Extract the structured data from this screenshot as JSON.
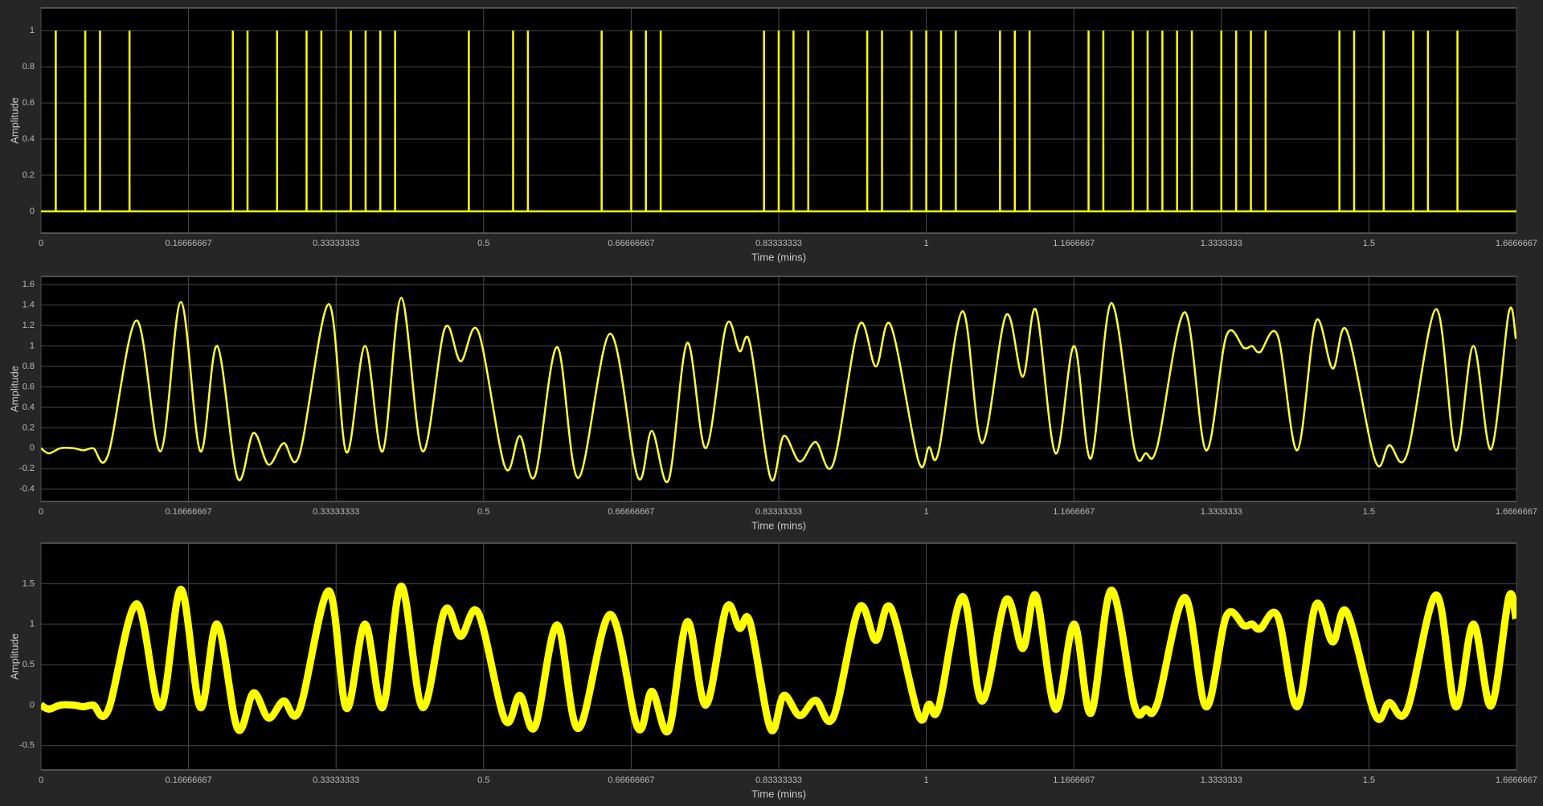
{
  "chart_data": [
    {
      "type": "stem",
      "xlabel": "Time (mins)",
      "ylabel": "Amplitude",
      "color": "#ffff00",
      "grid": true,
      "xlim": [
        0,
        1.6666667
      ],
      "xticks": [
        0,
        0.16666667,
        0.33333333,
        0.5,
        0.66666667,
        0.83333333,
        1,
        1.1666667,
        1.3333333,
        1.5,
        1.6666667
      ],
      "ylim": [
        -0.12,
        1.125
      ],
      "yticks": [
        0,
        0.2,
        0.4,
        0.6,
        0.8,
        1
      ],
      "x": [
        0.0167,
        0.05,
        0.0667,
        0.1,
        0.2167,
        0.2333,
        0.2667,
        0.3,
        0.3167,
        0.35,
        0.3667,
        0.3833,
        0.4,
        0.4833,
        0.5333,
        0.55,
        0.6333,
        0.6667,
        0.6833,
        0.7,
        0.8167,
        0.8333,
        0.85,
        0.8667,
        0.9333,
        0.95,
        0.9833,
        1,
        1.0167,
        1.0333,
        1.0833,
        1.1,
        1.1167,
        1.1833,
        1.2,
        1.2333,
        1.25,
        1.2667,
        1.2833,
        1.3,
        1.3333,
        1.35,
        1.3667,
        1.3833,
        1.4667,
        1.4833,
        1.5167,
        1.55,
        1.5667,
        1.6
      ],
      "values": [
        1,
        1,
        1,
        1,
        1,
        1,
        1,
        1,
        1,
        1,
        1,
        1,
        1,
        1,
        1,
        1,
        1,
        1,
        1,
        1,
        1,
        1,
        1,
        1,
        1,
        1,
        1,
        1,
        1,
        1,
        1,
        1,
        1,
        1,
        1,
        1,
        1,
        1,
        1,
        1,
        1,
        1,
        1,
        1,
        1,
        1,
        1,
        1,
        1,
        1
      ]
    },
    {
      "type": "line",
      "xlabel": "Time (mins)",
      "ylabel": "Amplitude",
      "color": "#ffff33",
      "grid": true,
      "xlim": [
        0,
        1.6666667
      ],
      "xticks": [
        0,
        0.16666667,
        0.33333333,
        0.5,
        0.66666667,
        0.83333333,
        1,
        1.1666667,
        1.3333333,
        1.5,
        1.6666667
      ],
      "ylim": [
        -0.52,
        1.68
      ],
      "yticks": [
        -0.4,
        -0.2,
        0,
        0.2,
        0.4,
        0.6,
        0.8,
        1,
        1.2,
        1.4,
        1.6
      ],
      "x": [
        0,
        0.009,
        0.022,
        0.037,
        0.048,
        0.059,
        0.076,
        0.108,
        0.135,
        0.158,
        0.18,
        0.199,
        0.222,
        0.24,
        0.257,
        0.274,
        0.292,
        0.325,
        0.345,
        0.366,
        0.386,
        0.407,
        0.431,
        0.456,
        0.474,
        0.494,
        0.524,
        0.541,
        0.558,
        0.583,
        0.607,
        0.643,
        0.674,
        0.69,
        0.709,
        0.73,
        0.751,
        0.774,
        0.789,
        0.801,
        0.824,
        0.839,
        0.857,
        0.875,
        0.895,
        0.924,
        0.943,
        0.96,
        0.991,
        1.003,
        1.014,
        1.041,
        1.063,
        1.09,
        1.109,
        1.124,
        1.146,
        1.167,
        1.186,
        1.209,
        1.235,
        1.248,
        1.261,
        1.292,
        1.316,
        1.339,
        1.359,
        1.368,
        1.377,
        1.397,
        1.419,
        1.44,
        1.459,
        1.475,
        1.507,
        1.523,
        1.543,
        1.576,
        1.598,
        1.618,
        1.638,
        1.658,
        1.666
      ],
      "values": [
        0,
        -0.05,
        0,
        0,
        -0.02,
        0,
        -0.06,
        1.25,
        -0.03,
        1.43,
        -0.03,
        1,
        -0.29,
        0.15,
        -0.16,
        0.05,
        -0.06,
        1.41,
        -0.04,
        1,
        -0.03,
        1.47,
        -0.03,
        1.17,
        0.85,
        1.14,
        -0.18,
        0.12,
        -0.27,
        0.99,
        -0.29,
        1.12,
        -0.28,
        0.17,
        -0.31,
        1.03,
        0,
        1.2,
        0.95,
        1.02,
        -0.29,
        0.12,
        -0.13,
        0.06,
        -0.15,
        1.2,
        0.8,
        1.2,
        -0.12,
        0.01,
        -0.03,
        1.34,
        0.05,
        1.3,
        0.7,
        1.35,
        -0.05,
        1,
        -0.1,
        1.42,
        0,
        -0.05,
        0.02,
        1.33,
        -0.02,
        1.1,
        0.98,
        1,
        0.94,
        1.1,
        -0.02,
        1.24,
        0.78,
        1.15,
        -0.12,
        0.03,
        -0.06,
        1.36,
        -0.02,
        1,
        -0.01,
        1.33,
        1.07
      ]
    },
    {
      "type": "line",
      "xlabel": "Time (mins)",
      "ylabel": "Amplitude",
      "color": "#ffff00",
      "grid": true,
      "noisy": true,
      "xlim": [
        0,
        1.6666667
      ],
      "xticks": [
        0,
        0.16666667,
        0.33333333,
        0.5,
        0.66666667,
        0.83333333,
        1,
        1.1666667,
        1.3333333,
        1.5,
        1.6666667
      ],
      "ylim": [
        -0.8,
        2
      ],
      "yticks": [
        -0.5,
        0,
        0.5,
        1,
        1.5
      ],
      "x": [
        0,
        0.009,
        0.022,
        0.037,
        0.048,
        0.059,
        0.076,
        0.108,
        0.135,
        0.158,
        0.18,
        0.199,
        0.222,
        0.24,
        0.257,
        0.274,
        0.292,
        0.325,
        0.345,
        0.366,
        0.386,
        0.407,
        0.431,
        0.456,
        0.474,
        0.494,
        0.524,
        0.541,
        0.558,
        0.583,
        0.607,
        0.643,
        0.674,
        0.69,
        0.709,
        0.73,
        0.751,
        0.774,
        0.789,
        0.801,
        0.824,
        0.839,
        0.857,
        0.875,
        0.895,
        0.924,
        0.943,
        0.96,
        0.991,
        1.003,
        1.014,
        1.041,
        1.063,
        1.09,
        1.109,
        1.124,
        1.146,
        1.167,
        1.186,
        1.209,
        1.235,
        1.248,
        1.261,
        1.292,
        1.316,
        1.339,
        1.359,
        1.368,
        1.377,
        1.397,
        1.419,
        1.44,
        1.459,
        1.475,
        1.507,
        1.523,
        1.543,
        1.576,
        1.598,
        1.618,
        1.638,
        1.658,
        1.666
      ],
      "values": [
        0,
        -0.05,
        0,
        0,
        -0.02,
        0,
        -0.06,
        1.25,
        -0.03,
        1.43,
        -0.03,
        1,
        -0.29,
        0.15,
        -0.16,
        0.05,
        -0.06,
        1.41,
        -0.04,
        1,
        -0.03,
        1.47,
        -0.03,
        1.17,
        0.85,
        1.14,
        -0.18,
        0.12,
        -0.27,
        0.99,
        -0.29,
        1.12,
        -0.28,
        0.17,
        -0.31,
        1.03,
        0,
        1.2,
        0.95,
        1.02,
        -0.29,
        0.12,
        -0.13,
        0.06,
        -0.15,
        1.2,
        0.8,
        1.2,
        -0.12,
        0.01,
        -0.03,
        1.34,
        0.05,
        1.3,
        0.7,
        1.35,
        -0.05,
        1,
        -0.1,
        1.42,
        0,
        -0.05,
        0.02,
        1.33,
        -0.02,
        1.1,
        0.98,
        1,
        0.94,
        1.1,
        -0.02,
        1.24,
        0.78,
        1.15,
        -0.12,
        0.03,
        -0.06,
        1.36,
        -0.02,
        1,
        -0.01,
        1.33,
        1.07
      ]
    }
  ]
}
